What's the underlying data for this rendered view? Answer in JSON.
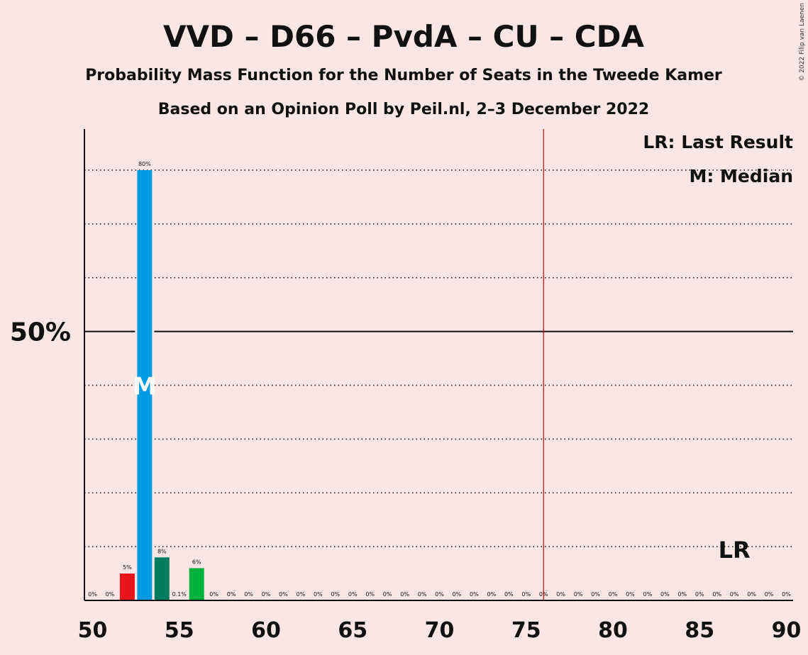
{
  "header": {
    "title": "VVD – D66 – PvdA – CU – CDA",
    "subtitle": "Probability Mass Function for the Number of Seats in the Tweede Kamer",
    "source": "Based on an Opinion Poll by Peil.nl, 2–3 December 2022",
    "copyright": "© 2022 Filip van Laenen"
  },
  "legend": {
    "last_result": "LR: Last Result",
    "median": "M: Median"
  },
  "chart_data": {
    "type": "bar",
    "x": [
      50,
      51,
      52,
      53,
      54,
      55,
      56,
      57,
      58,
      59,
      60,
      61,
      62,
      63,
      64,
      65,
      66,
      67,
      68,
      69,
      70,
      71,
      72,
      73,
      74,
      75,
      76,
      77,
      78,
      79,
      80,
      81,
      82,
      83,
      84,
      85,
      86,
      87,
      88,
      89,
      90
    ],
    "values": [
      0,
      0,
      5,
      80,
      8,
      0.1,
      6,
      0,
      0,
      0,
      0,
      0,
      0,
      0,
      0,
      0,
      0,
      0,
      0,
      0,
      0,
      0,
      0,
      0,
      0,
      0,
      0,
      0,
      0,
      0,
      0,
      0,
      0,
      0,
      0,
      0,
      0,
      0,
      0,
      0,
      0
    ],
    "labels": [
      "0%",
      "0%",
      "5%",
      "80%",
      "8%",
      "0.1%",
      "6%",
      "0%",
      "0%",
      "0%",
      "0%",
      "0%",
      "0%",
      "0%",
      "0%",
      "0%",
      "0%",
      "0%",
      "0%",
      "0%",
      "0%",
      "0%",
      "0%",
      "0%",
      "0%",
      "0%",
      "0%",
      "0%",
      "0%",
      "0%",
      "0%",
      "0%",
      "0%",
      "0%",
      "0%",
      "0%",
      "0%",
      "0%",
      "0%",
      "0%",
      "0%"
    ],
    "bar_colors": {
      "52": "#e8141c",
      "53": "#009be0",
      "54": "#007c5e",
      "56": "#00b13d"
    },
    "xlim": [
      50,
      90
    ],
    "ylim": [
      0,
      87.5
    ],
    "x_ticks": [
      "50",
      "55",
      "60",
      "65",
      "70",
      "75",
      "80",
      "85",
      "90"
    ],
    "y_tick_label": "50%",
    "y_tick_value": 50,
    "gridlines": [
      10,
      20,
      30,
      40,
      60,
      70,
      80
    ],
    "majority_line": 76,
    "majority_color": "#c00000",
    "median_seat": 53,
    "median_marker": "M",
    "last_result_seat": 87,
    "last_result_marker": "LR"
  }
}
